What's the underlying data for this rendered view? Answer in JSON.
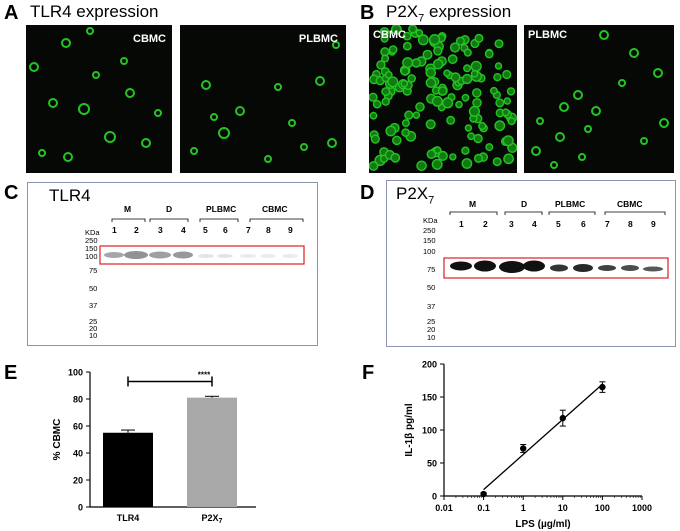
{
  "panels": {
    "A": {
      "letter": "A",
      "title": "TLR4 expression",
      "images": [
        {
          "label": "CBMC"
        },
        {
          "label": "PLBMC"
        }
      ]
    },
    "B": {
      "letter": "B",
      "title_main": "P2X",
      "title_sub": "7",
      "title_tail": " expression",
      "images": [
        {
          "label": "CBMC"
        },
        {
          "label": "PLBMC"
        }
      ]
    },
    "C": {
      "letter": "C",
      "title": "TLR4",
      "kda_header": "KDa",
      "markers": [
        "250",
        "150",
        "100",
        "75",
        "50",
        "37",
        "25",
        "20",
        "10"
      ],
      "groups": [
        "M",
        "D",
        "PLBMC",
        "CBMC"
      ],
      "lanes": [
        "1",
        "2",
        "3",
        "4",
        "5",
        "6",
        "7",
        "8",
        "9"
      ]
    },
    "D": {
      "letter": "D",
      "title_main": "P2X",
      "title_sub": "7",
      "kda_header": "KDa",
      "markers": [
        "250",
        "150",
        "100",
        "75",
        "50",
        "37",
        "25",
        "20",
        "10"
      ],
      "groups": [
        "M",
        "D",
        "PLBMC",
        "CBMC"
      ],
      "lanes": [
        "1",
        "2",
        "3",
        "4",
        "5",
        "6",
        "7",
        "8",
        "9"
      ]
    },
    "E": {
      "letter": "E"
    },
    "F": {
      "letter": "F"
    }
  },
  "colors": {
    "fluorescence": "#22c422",
    "bar_tlr4": "#000000",
    "bar_p2x7": "#a8a8a8",
    "highlight_box": "#e02020"
  },
  "chart_data": [
    {
      "type": "bar",
      "categories": [
        "TLR4",
        "P2X7"
      ],
      "category_labels": [
        {
          "main": "TLR4",
          "sub": ""
        },
        {
          "main": "P2X",
          "sub": "7"
        }
      ],
      "values": [
        55,
        81
      ],
      "errors": [
        2,
        1
      ],
      "ylabel": "% CBMC",
      "ylim": [
        0,
        100
      ],
      "yticks": [
        "0",
        "20",
        "40",
        "60",
        "80",
        "100"
      ],
      "annotation": "****"
    },
    {
      "type": "scatter",
      "x": [
        0.1,
        1,
        10,
        100
      ],
      "y": [
        3,
        72,
        118,
        165
      ],
      "yerr": [
        2,
        6,
        12,
        8
      ],
      "x_scale": "log",
      "xlim": [
        0.01,
        1000
      ],
      "ylim": [
        0,
        200
      ],
      "xticks": [
        "0.01",
        "0.1",
        "1",
        "10",
        "100",
        "1000"
      ],
      "yticks": [
        "0",
        "50",
        "100",
        "150",
        "200"
      ],
      "xlabel": "LPS (µg/ml)",
      "ylabel": "IL-1β pg/ml",
      "fit_line": true
    }
  ]
}
